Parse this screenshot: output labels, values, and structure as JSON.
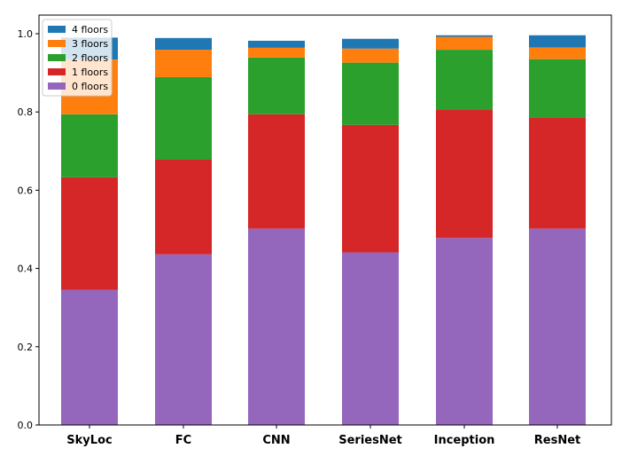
{
  "chart_data": {
    "type": "bar",
    "stacked": true,
    "categories": [
      "SkyLoc",
      "FC",
      "CNN",
      "SeriesNet",
      "Inception",
      "ResNet"
    ],
    "series": [
      {
        "name": "0 floors",
        "color": "#9467bd",
        "values": [
          0.345,
          0.436,
          0.502,
          0.441,
          0.478,
          0.502
        ]
      },
      {
        "name": "1 floors",
        "color": "#d62728",
        "values": [
          0.288,
          0.242,
          0.292,
          0.326,
          0.328,
          0.284
        ]
      },
      {
        "name": "2 floors",
        "color": "#2ca02c",
        "values": [
          0.161,
          0.211,
          0.145,
          0.159,
          0.153,
          0.149
        ]
      },
      {
        "name": "3 floors",
        "color": "#ff7f0e",
        "values": [
          0.14,
          0.07,
          0.025,
          0.036,
          0.033,
          0.03
        ]
      },
      {
        "name": "4 floors",
        "color": "#1f77b4",
        "values": [
          0.056,
          0.03,
          0.018,
          0.025,
          0.004,
          0.031
        ]
      }
    ],
    "yticks": [
      "0.0",
      "0.2",
      "0.4",
      "0.6",
      "0.8",
      "1.0"
    ],
    "ylim": [
      0,
      1.0
    ],
    "legend": {
      "placement": "top-left",
      "order": [
        "4 floors",
        "3 floors",
        "2 floors",
        "1 floors",
        "0 floors"
      ]
    },
    "grid": false,
    "title": "",
    "xlabel": "",
    "ylabel": ""
  }
}
